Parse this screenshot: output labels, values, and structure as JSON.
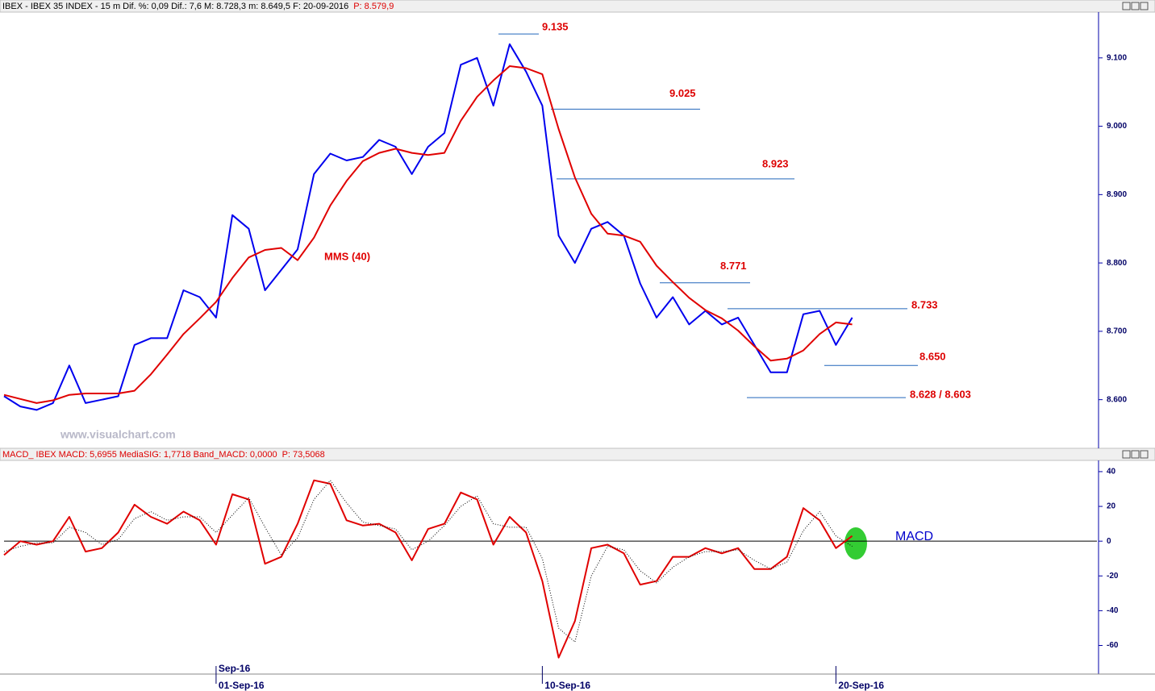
{
  "header": {
    "text": "IBEX - IBEX 35 INDEX - 15 m  Dif. %: 0,09  Dif.: 7,6  M: 8.728,3  m: 8.649,5  F: 20-09-2016",
    "price": "P: 8.579,9"
  },
  "macd_header": {
    "text": "MACD_ IBEX MACD: 5,6955  MediaSIG: 1,7718  Band_MACD: 0,0000",
    "price": "P: 73,5068"
  },
  "watermark": "www.visualchart.com",
  "month_label": "Sep-16",
  "chart_data": [
    {
      "type": "line",
      "categories": [
        null,
        null,
        null,
        null,
        null,
        null,
        null,
        null,
        null,
        null,
        null,
        null,
        null,
        "01-Sep-16",
        null,
        null,
        null,
        null,
        null,
        null,
        null,
        null,
        null,
        null,
        null,
        null,
        null,
        null,
        null,
        null,
        null,
        null,
        null,
        "10-Sep-16",
        null,
        null,
        null,
        null,
        null,
        null,
        null,
        null,
        null,
        null,
        null,
        null,
        null,
        null,
        null,
        null,
        null,
        "20-Sep-16",
        null,
        null,
        null,
        null,
        null,
        null,
        null,
        null,
        null,
        null,
        null,
        null,
        null,
        null,
        null,
        null
      ],
      "ylim": [
        8530,
        9167
      ],
      "yticks": [
        {
          "value": 8600,
          "label": "8.600"
        },
        {
          "value": 8700,
          "label": "8.700"
        },
        {
          "value": 8800,
          "label": "8.800"
        },
        {
          "value": 8900,
          "label": "8.900"
        },
        {
          "value": 9000,
          "label": "9.000"
        },
        {
          "value": 9100,
          "label": "9.100"
        }
      ],
      "series": [
        {
          "color": "#0000ee",
          "values": [
            8605,
            8590,
            8585,
            8595,
            8650,
            8595,
            8600,
            8605,
            8680,
            8690,
            8690,
            8760,
            8750,
            8720,
            8870,
            8850,
            8760,
            8790,
            8820,
            8930,
            8960,
            8950,
            8955,
            8980,
            8970,
            8930,
            8970,
            8990,
            9090,
            9100,
            9030,
            9120,
            9080,
            9030,
            8840,
            8800,
            8850,
            8860,
            8840,
            8770,
            8720,
            8750,
            8710,
            8730,
            8710,
            8720,
            8680,
            8640,
            8640,
            8725,
            8730,
            8680,
            8720,
            null,
            null,
            null,
            null,
            null,
            null,
            null,
            null,
            null,
            null,
            null,
            null,
            null,
            null,
            null
          ]
        },
        {
          "name": "MMS (40)",
          "color": "#e00000",
          "values": [
            8607,
            8601,
            8595,
            8599,
            8607,
            8609,
            8609,
            8609,
            8613,
            8637,
            8666,
            8696,
            8719,
            8743,
            8778,
            8808,
            8819,
            8822,
            8804,
            8837,
            8884,
            8920,
            8949,
            8961,
            8967,
            8961,
            8958,
            8961,
            9008,
            9043,
            9067,
            9088,
            9085,
            9076,
            8996,
            8925,
            8872,
            8843,
            8840,
            8831,
            8796,
            8772,
            8749,
            8731,
            8719,
            8701,
            8678,
            8657,
            8660,
            8672,
            8696,
            8713,
            8710,
            null,
            null,
            null,
            null,
            null,
            null,
            null,
            null,
            null,
            null,
            null,
            null,
            null,
            null,
            null
          ]
        }
      ],
      "levels": [
        {
          "label": "9.135",
          "value": 9135
        },
        {
          "label": "9.025",
          "value": 9025
        },
        {
          "label": "8.923",
          "value": 8923
        },
        {
          "label": "8.771",
          "value": 8771
        },
        {
          "label": "8.733",
          "value": 8733
        },
        {
          "label": "8.650",
          "value": 8650
        },
        {
          "label": "8.628 / 8.603",
          "value": 8603
        }
      ],
      "level_color": "#2266bb",
      "label_color": "#dd0000"
    },
    {
      "type": "line",
      "ylim": [
        -76,
        46
      ],
      "yticks": [
        -60,
        -40,
        -20,
        0,
        20,
        40
      ],
      "series": [
        {
          "name": "MACD",
          "color": "#e00000",
          "values": [
            -8,
            0,
            -2,
            0,
            14,
            -6,
            -4,
            5,
            21,
            14,
            10,
            17,
            12,
            -2,
            27,
            24,
            -13,
            -9,
            10,
            35,
            33,
            12,
            9,
            10,
            5,
            -11,
            7,
            10,
            28,
            24,
            -2,
            14,
            5,
            -23,
            -67,
            -46,
            -4,
            -2,
            -7,
            -25,
            -23,
            -9,
            -9,
            -4,
            -7,
            -4,
            -16,
            -16,
            -9,
            19,
            12,
            -4,
            3,
            null,
            null,
            null,
            null,
            null,
            null,
            null,
            null,
            null,
            null,
            null,
            null,
            null,
            null,
            null
          ]
        },
        {
          "color": "#000000",
          "dashed": true,
          "values": [
            -6,
            -3,
            -1,
            -1,
            8,
            5,
            -2,
            1,
            13,
            17,
            12,
            14,
            14,
            5,
            15,
            25,
            8,
            -8,
            2,
            24,
            35,
            22,
            11,
            9,
            7,
            -5,
            0,
            9,
            20,
            26,
            10,
            8,
            8,
            -10,
            -50,
            -58,
            -20,
            -3,
            -5,
            -17,
            -24,
            -15,
            -9,
            -6,
            -6,
            -5,
            -11,
            -16,
            -12,
            6,
            17,
            3,
            -3,
            null,
            null,
            null,
            null,
            null,
            null,
            null,
            null,
            null,
            null,
            null,
            null,
            null,
            null,
            null
          ]
        }
      ]
    }
  ]
}
